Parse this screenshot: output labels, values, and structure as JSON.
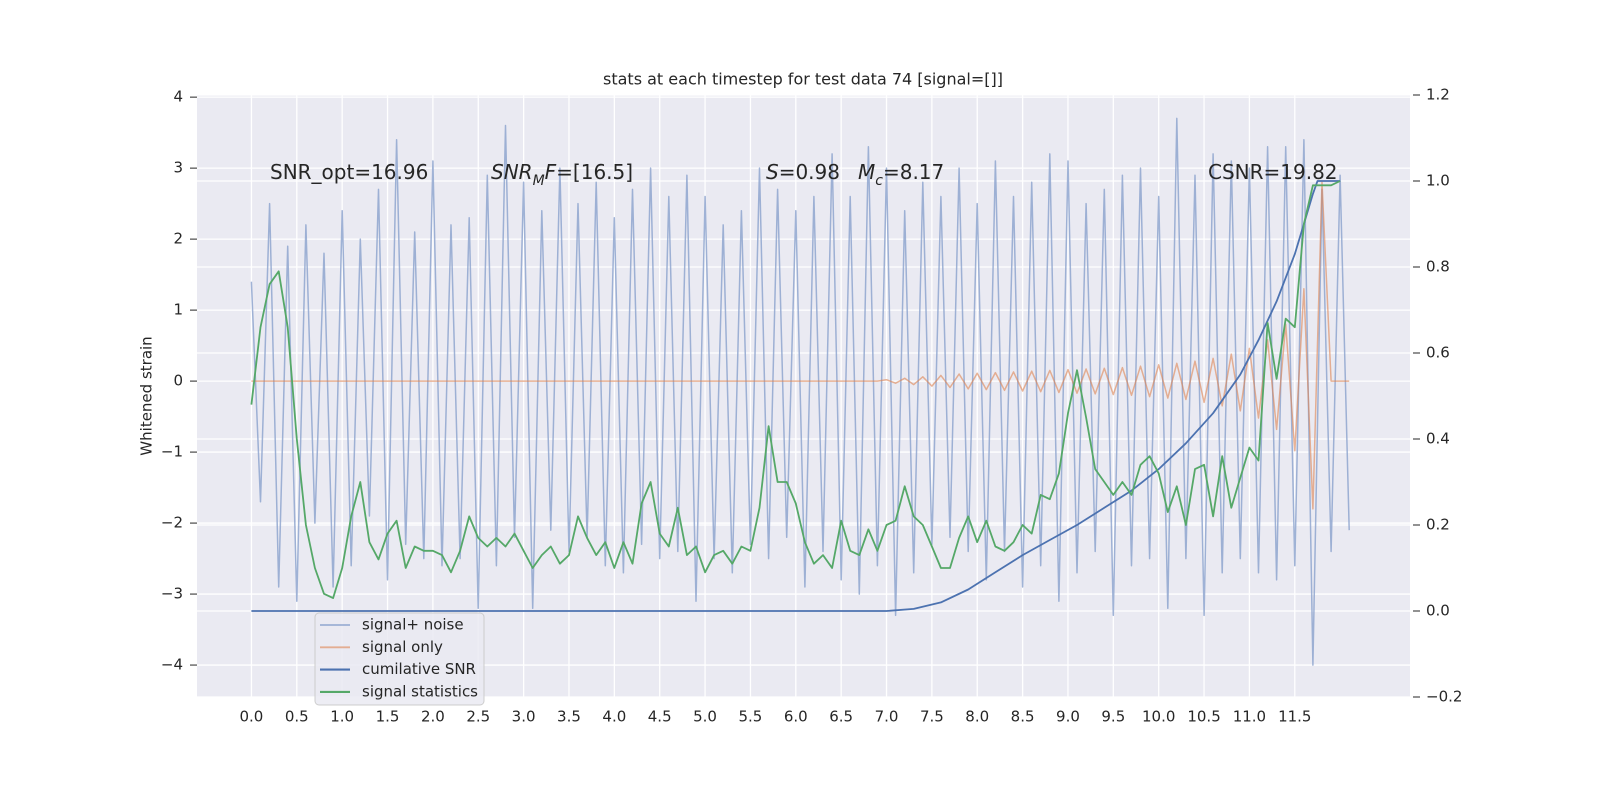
{
  "chart_data": {
    "type": "line",
    "title": "stats at each timestep for test data 74 [signal=[]]",
    "ylabel": "Whitened strain",
    "xlim": [
      -0.6,
      12.77
    ],
    "ylim": [
      -4.45,
      4.03
    ],
    "y2lim": [
      -0.2,
      1.2
    ],
    "grid": true,
    "legend": "lower left",
    "xticks": [
      {
        "value": 0,
        "label": "0.0"
      },
      0.5,
      {
        "value": 1,
        "label": "1.0"
      },
      1.5,
      {
        "value": 2,
        "label": "2.0"
      },
      2.5,
      {
        "value": 3,
        "label": "3.0"
      },
      3.5,
      {
        "value": 4,
        "label": "4.0"
      },
      4.5,
      {
        "value": 5,
        "label": "5.0"
      },
      5.5,
      {
        "value": 6,
        "label": "6.0"
      },
      6.5,
      {
        "value": 7,
        "label": "7.0"
      },
      7.5,
      {
        "value": 8,
        "label": "8.0"
      },
      8.5,
      {
        "value": 9,
        "label": "9.0"
      },
      9.5,
      {
        "value": 10,
        "label": "10.0"
      },
      10.5,
      {
        "value": 11,
        "label": "11.0"
      },
      11.5
    ],
    "yticks": [
      {
        "value": -4,
        "label": "−4"
      },
      {
        "value": -3,
        "label": "−3"
      },
      {
        "value": -2,
        "label": "−2"
      },
      {
        "value": -1,
        "label": "−1"
      },
      0,
      1,
      2,
      3,
      4
    ],
    "y2ticks": [
      {
        "value": -0.2,
        "label": "−0.2"
      },
      {
        "value": 0,
        "label": "0.0"
      },
      0.2,
      0.4,
      0.6,
      0.8,
      {
        "value": 1,
        "label": "1.0"
      },
      1.2
    ],
    "annotations": [
      [
        {
          "text": "SNR_opt=16.96"
        }
      ],
      [
        {
          "text": "SNR",
          "italic": true
        },
        {
          "text": "M",
          "italic": true,
          "sub": true
        },
        {
          "text": "F",
          "italic": true
        },
        {
          "text": "=[16.5]"
        }
      ],
      [
        {
          "text": "S",
          "italic": true
        },
        {
          "text": "=0.98"
        }
      ],
      [
        {
          "text": "M",
          "italic": true
        },
        {
          "text": "c",
          "italic": true,
          "sub": true
        },
        {
          "text": "=8.17"
        }
      ],
      [
        {
          "text": "CSNR=19.82"
        }
      ]
    ],
    "x": [
      0,
      0.1,
      0.2,
      0.3,
      0.4,
      0.5,
      0.6,
      0.7,
      0.8,
      0.9,
      1,
      1.1,
      1.2,
      1.3,
      1.4,
      1.5,
      1.6,
      1.7,
      1.8,
      1.9,
      2,
      2.1,
      2.2,
      2.3,
      2.4,
      2.5,
      2.6,
      2.7,
      2.8,
      2.9,
      3,
      3.1,
      3.2,
      3.3,
      3.4,
      3.5,
      3.6,
      3.7,
      3.8,
      3.9,
      4,
      4.1,
      4.2,
      4.3,
      4.4,
      4.5,
      4.6,
      4.7,
      4.8,
      4.9,
      5,
      5.1,
      5.2,
      5.3,
      5.4,
      5.5,
      5.6,
      5.7,
      5.8,
      5.9,
      6,
      6.1,
      6.2,
      6.3,
      6.4,
      6.5,
      6.6,
      6.7,
      6.8,
      6.9,
      7,
      7.1,
      7.2,
      7.3,
      7.4,
      7.5,
      7.6,
      7.7,
      7.8,
      7.9,
      8,
      8.1,
      8.2,
      8.3,
      8.4,
      8.5,
      8.6,
      8.7,
      8.8,
      8.9,
      9,
      9.1,
      9.2,
      9.3,
      9.4,
      9.5,
      9.6,
      9.7,
      9.8,
      9.9,
      10,
      10.1,
      10.2,
      10.3,
      10.4,
      10.5,
      10.6,
      10.7,
      10.8,
      10.9,
      11,
      11.1,
      11.2,
      11.3,
      11.4,
      11.5,
      11.6,
      11.7,
      11.8,
      11.9,
      12,
      12.1
    ],
    "series": [
      {
        "name": "signal+ noise",
        "color": "#8fa6cf",
        "axis": "y",
        "values": [
          1.4,
          -1.7,
          2.5,
          -2.9,
          1.9,
          -3.1,
          2.2,
          -2.0,
          1.8,
          -2.9,
          2.4,
          -2.6,
          2.0,
          -1.9,
          2.7,
          -2.8,
          3.4,
          -2.3,
          2.1,
          -2.5,
          3.1,
          -2.6,
          2.2,
          -2.5,
          2.3,
          -3.2,
          2.9,
          -2.6,
          3.6,
          -2.2,
          2.8,
          -3.2,
          2.4,
          -2.1,
          3.0,
          -2.4,
          2.5,
          -2.2,
          2.8,
          -2.6,
          2.3,
          -2.7,
          2.7,
          -2.3,
          3.0,
          -2.5,
          2.6,
          -2.4,
          2.9,
          -3.1,
          2.6,
          -2.5,
          2.2,
          -2.7,
          2.4,
          -2.3,
          3.0,
          -2.5,
          2.7,
          -2.2,
          2.4,
          -2.9,
          2.6,
          -2.4,
          3.2,
          -2.8,
          2.6,
          -3.0,
          3.3,
          -2.6,
          3.0,
          -3.3,
          2.4,
          -2.7,
          2.8,
          -2.3,
          2.6,
          -2.2,
          3.0,
          -2.4,
          2.5,
          -2.8,
          3.1,
          -2.4,
          2.6,
          -2.9,
          2.8,
          -2.6,
          3.2,
          -3.1,
          3.1,
          -2.7,
          2.5,
          -2.4,
          2.7,
          -3.3,
          2.9,
          -2.6,
          3.0,
          -2.5,
          2.6,
          -3.2,
          3.7,
          -2.5,
          2.9,
          -3.3,
          3.2,
          -2.7,
          3.1,
          -2.5,
          3.0,
          -2.7,
          3.3,
          -2.8,
          3.3,
          -2.6,
          3.4,
          -4.0,
          2.7,
          -2.4,
          2.9,
          -2.1
        ]
      },
      {
        "name": "signal only",
        "color": "#dd8452",
        "axis": "y",
        "values": [
          0,
          0,
          0,
          0,
          0,
          0,
          0,
          0,
          0,
          0,
          0,
          0,
          0,
          0,
          0,
          0,
          0,
          0,
          0,
          0,
          0,
          0,
          0,
          0,
          0,
          0,
          0,
          0,
          0,
          0,
          0,
          0,
          0,
          0,
          0,
          0,
          0,
          0,
          0,
          0,
          0,
          0,
          0,
          0,
          0,
          0,
          0,
          0,
          0,
          0,
          0,
          0,
          0,
          0,
          0,
          0,
          0,
          0,
          0,
          0,
          0,
          0,
          0,
          0,
          0,
          0,
          0,
          0,
          0,
          0,
          0.02,
          -0.03,
          0.04,
          -0.05,
          0.06,
          -0.07,
          0.08,
          -0.09,
          0.1,
          -0.11,
          0.11,
          -0.12,
          0.12,
          -0.13,
          0.13,
          -0.14,
          0.14,
          -0.15,
          0.15,
          -0.16,
          0.16,
          -0.17,
          0.17,
          -0.18,
          0.18,
          -0.19,
          0.19,
          -0.2,
          0.21,
          -0.22,
          0.23,
          -0.24,
          0.25,
          -0.26,
          0.28,
          -0.3,
          0.32,
          -0.35,
          0.38,
          -0.42,
          0.46,
          -0.52,
          0.58,
          -0.68,
          0.8,
          -0.98,
          1.3,
          -1.8,
          2.8,
          0,
          0,
          0
        ]
      },
      {
        "name": "cumilative SNR",
        "color": "#4c72b0",
        "axis": "y2",
        "x": [
          0,
          7.0,
          7.3,
          7.6,
          7.9,
          8.2,
          8.5,
          8.8,
          9.1,
          9.4,
          9.7,
          10.0,
          10.3,
          10.6,
          10.9,
          11.1,
          11.3,
          11.5,
          11.6,
          11.7,
          11.75,
          12.0
        ],
        "values": [
          0,
          0,
          0.005,
          0.02,
          0.05,
          0.09,
          0.13,
          0.165,
          0.2,
          0.24,
          0.28,
          0.33,
          0.39,
          0.46,
          0.55,
          0.63,
          0.72,
          0.83,
          0.9,
          0.97,
          1.0,
          1.0
        ]
      },
      {
        "name": "signal statistics",
        "color": "#55a868",
        "axis": "y2",
        "x": [
          0,
          0.1,
          0.2,
          0.3,
          0.4,
          0.5,
          0.6,
          0.7,
          0.8,
          0.9,
          1,
          1.1,
          1.2,
          1.3,
          1.4,
          1.5,
          1.6,
          1.7,
          1.8,
          1.9,
          2,
          2.1,
          2.2,
          2.3,
          2.4,
          2.5,
          2.6,
          2.7,
          2.8,
          2.9,
          3,
          3.1,
          3.2,
          3.3,
          3.4,
          3.5,
          3.6,
          3.7,
          3.8,
          3.9,
          4,
          4.1,
          4.2,
          4.3,
          4.4,
          4.5,
          4.6,
          4.7,
          4.8,
          4.9,
          5,
          5.1,
          5.2,
          5.3,
          5.4,
          5.5,
          5.6,
          5.7,
          5.8,
          5.9,
          6,
          6.1,
          6.2,
          6.3,
          6.4,
          6.5,
          6.6,
          6.7,
          6.8,
          6.9,
          7,
          7.1,
          7.2,
          7.3,
          7.4,
          7.5,
          7.6,
          7.7,
          7.8,
          7.9,
          8,
          8.1,
          8.2,
          8.3,
          8.4,
          8.5,
          8.6,
          8.7,
          8.8,
          8.9,
          9,
          9.1,
          9.2,
          9.3,
          9.4,
          9.5,
          9.6,
          9.7,
          9.8,
          9.9,
          10,
          10.1,
          10.2,
          10.3,
          10.4,
          10.5,
          10.6,
          10.7,
          10.8,
          10.9,
          11,
          11.1,
          11.2,
          11.3,
          11.4,
          11.5,
          11.6,
          11.7,
          11.8,
          11.9,
          12
        ],
        "values": [
          0.48,
          0.66,
          0.76,
          0.79,
          0.66,
          0.4,
          0.2,
          0.1,
          0.04,
          0.03,
          0.1,
          0.22,
          0.3,
          0.16,
          0.12,
          0.18,
          0.21,
          0.1,
          0.15,
          0.14,
          0.14,
          0.13,
          0.09,
          0.14,
          0.22,
          0.17,
          0.15,
          0.17,
          0.15,
          0.18,
          0.14,
          0.1,
          0.13,
          0.15,
          0.11,
          0.13,
          0.22,
          0.17,
          0.13,
          0.16,
          0.1,
          0.16,
          0.11,
          0.25,
          0.3,
          0.18,
          0.15,
          0.24,
          0.13,
          0.15,
          0.09,
          0.13,
          0.14,
          0.11,
          0.15,
          0.14,
          0.24,
          0.43,
          0.3,
          0.3,
          0.25,
          0.16,
          0.11,
          0.13,
          0.1,
          0.21,
          0.14,
          0.13,
          0.19,
          0.14,
          0.2,
          0.21,
          0.29,
          0.22,
          0.2,
          0.15,
          0.1,
          0.1,
          0.17,
          0.22,
          0.16,
          0.21,
          0.15,
          0.14,
          0.16,
          0.2,
          0.18,
          0.27,
          0.26,
          0.32,
          0.46,
          0.56,
          0.45,
          0.33,
          0.3,
          0.27,
          0.3,
          0.27,
          0.34,
          0.36,
          0.32,
          0.23,
          0.29,
          0.2,
          0.33,
          0.34,
          0.22,
          0.36,
          0.24,
          0.31,
          0.38,
          0.35,
          0.67,
          0.54,
          0.68,
          0.66,
          0.9,
          0.99,
          0.99,
          0.99,
          1.0
        ]
      }
    ]
  }
}
